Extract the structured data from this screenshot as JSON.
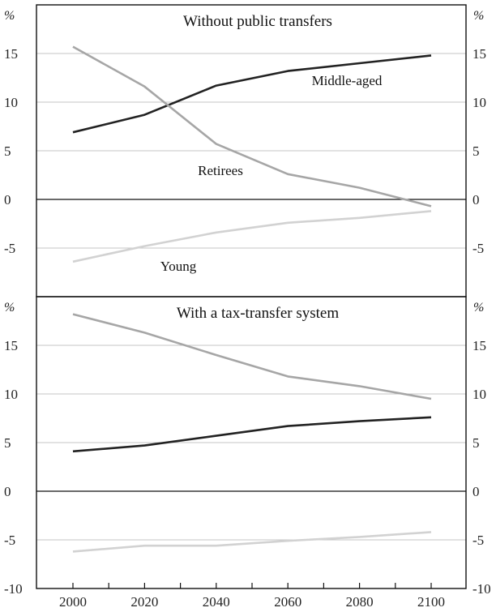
{
  "chart_data": [
    {
      "type": "line",
      "title": "Without public transfers",
      "unit_label": "%",
      "x": [
        2000,
        2020,
        2040,
        2060,
        2080,
        2100
      ],
      "ylim": [
        -10,
        20
      ],
      "yticks": [
        -5,
        0,
        5,
        10,
        15
      ],
      "grid": true,
      "series": [
        {
          "name": "Middle-aged",
          "color": "#222222",
          "values": [
            6.9,
            8.7,
            11.7,
            13.2,
            14.0,
            14.8
          ]
        },
        {
          "name": "Retirees",
          "color": "#a6a6a6",
          "values": [
            15.7,
            11.6,
            5.7,
            2.6,
            1.2,
            -0.7
          ]
        },
        {
          "name": "Young",
          "color": "#d2d2d2",
          "values": [
            -6.4,
            -4.8,
            -3.4,
            -2.4,
            -1.9,
            -1.2
          ]
        }
      ]
    },
    {
      "type": "line",
      "title": "With a tax-transfer system",
      "unit_label": "%",
      "x": [
        2000,
        2020,
        2040,
        2060,
        2080,
        2100
      ],
      "xticks": [
        "2000",
        "2020",
        "2040",
        "2060",
        "2080",
        "2100"
      ],
      "ylim": [
        -10,
        20
      ],
      "yticks": [
        -10,
        -5,
        0,
        5,
        10,
        15
      ],
      "grid": true,
      "series": [
        {
          "color": "#a6a6a6",
          "values": [
            18.2,
            16.3,
            14.0,
            11.8,
            10.8,
            9.5
          ]
        },
        {
          "color": "#222222",
          "values": [
            4.1,
            4.7,
            5.7,
            6.7,
            7.2,
            7.6
          ]
        },
        {
          "color": "#d2d2d2",
          "values": [
            -6.2,
            -5.6,
            -5.6,
            -5.1,
            -4.7,
            -4.2
          ]
        }
      ]
    }
  ]
}
